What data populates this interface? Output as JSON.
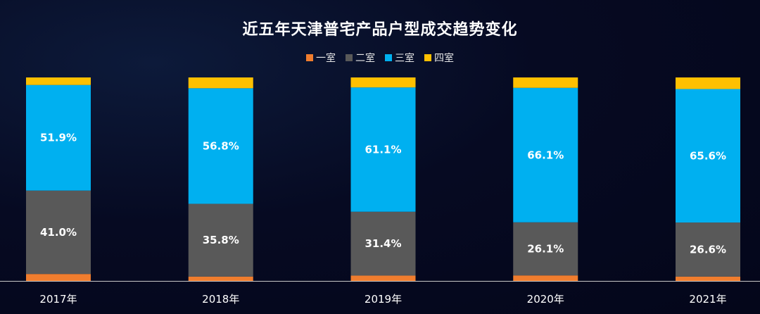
{
  "chart_data": {
    "type": "bar",
    "stacked": true,
    "title": "近五年天津普宅产品户型成交趋势变化",
    "categories": [
      "2017年",
      "2018年",
      "2019年",
      "2020年",
      "2021年"
    ],
    "series": [
      {
        "name": "一室",
        "color": "#f07d2e",
        "values": [
          3.4,
          2.1,
          2.6,
          2.7,
          2.1
        ],
        "labels": [
          "",
          "",
          "",
          "",
          ""
        ]
      },
      {
        "name": "二室",
        "color": "#595959",
        "values": [
          41.0,
          35.8,
          31.4,
          26.1,
          26.6
        ],
        "labels": [
          "41.0%",
          "35.8%",
          "31.4%",
          "26.1%",
          "26.6%"
        ]
      },
      {
        "name": "三室",
        "color": "#00b0f0",
        "values": [
          51.9,
          56.8,
          61.1,
          66.1,
          65.6
        ],
        "labels": [
          "51.9%",
          "56.8%",
          "61.1%",
          "66.1%",
          "65.6%"
        ]
      },
      {
        "name": "四室",
        "color": "#ffc000",
        "values": [
          3.7,
          5.3,
          4.9,
          5.1,
          5.7
        ],
        "labels": [
          "",
          "",
          "",
          "",
          ""
        ]
      }
    ],
    "ylim": [
      0,
      100
    ],
    "legend_position": "top-center",
    "grid": false,
    "xlabel": "",
    "ylabel": ""
  },
  "colors": {
    "axis": "#c8c8c8",
    "background": "#060a22"
  }
}
